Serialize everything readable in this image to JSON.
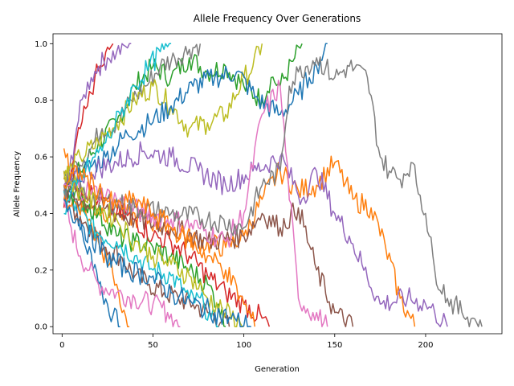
{
  "chart_data": {
    "type": "line",
    "title": "Allele Frequency Over Generations",
    "xlabel": "Generation",
    "ylabel": "Allele Frequency",
    "xlim": [
      -5,
      242
    ],
    "ylim": [
      -0.025,
      1.035
    ],
    "xticks": [
      0,
      50,
      100,
      150,
      200
    ],
    "yticks": [
      0.0,
      0.2,
      0.4,
      0.6,
      0.8,
      1.0
    ],
    "xtick_labels": [
      "0",
      "50",
      "100",
      "150",
      "200"
    ],
    "ytick_labels": [
      "0.0",
      "0.2",
      "0.4",
      "0.6",
      "0.8",
      "1.0"
    ],
    "grid": false,
    "legend": "none",
    "colors": [
      "#1f77b4",
      "#ff7f0e",
      "#2ca02c",
      "#d62728",
      "#9467bd",
      "#8c564b",
      "#e377c2",
      "#7f7f7f",
      "#bcbd22",
      "#17becf"
    ],
    "series": [
      {
        "x": [
          1,
          6,
          12,
          18,
          22,
          28,
          32
        ],
        "y": [
          0.55,
          0.48,
          0.3,
          0.22,
          0.12,
          0.04,
          0.0
        ]
      },
      {
        "x": [
          1,
          5,
          10,
          15,
          20,
          26,
          30,
          33,
          37
        ],
        "y": [
          0.63,
          0.52,
          0.45,
          0.38,
          0.3,
          0.22,
          0.15,
          0.05,
          0.0
        ]
      },
      {
        "x": [
          1,
          10,
          20,
          30,
          40,
          50,
          60,
          70,
          80,
          90,
          100,
          110,
          115,
          120,
          128,
          132
        ],
        "y": [
          0.5,
          0.55,
          0.65,
          0.72,
          0.85,
          0.92,
          0.88,
          0.95,
          0.9,
          0.92,
          0.85,
          0.8,
          0.88,
          0.85,
          0.95,
          1.0
        ]
      },
      {
        "x": [
          1,
          5,
          10,
          14,
          18,
          22,
          26,
          28
        ],
        "y": [
          0.42,
          0.55,
          0.7,
          0.78,
          0.88,
          0.92,
          0.98,
          1.0
        ]
      },
      {
        "x": [
          1,
          4,
          8,
          12,
          16,
          20,
          25,
          30,
          35,
          38
        ],
        "y": [
          0.45,
          0.55,
          0.7,
          0.82,
          0.88,
          0.92,
          0.95,
          0.97,
          0.99,
          1.0
        ]
      },
      {
        "x": [
          1,
          8,
          16,
          24,
          32,
          40,
          48,
          56,
          64,
          72,
          80,
          88,
          92
        ],
        "y": [
          0.48,
          0.4,
          0.35,
          0.28,
          0.25,
          0.18,
          0.15,
          0.12,
          0.1,
          0.08,
          0.05,
          0.02,
          0.0
        ]
      },
      {
        "x": [
          1,
          5,
          10,
          15,
          20,
          30,
          40,
          50,
          58,
          62,
          65
        ],
        "y": [
          0.45,
          0.35,
          0.25,
          0.2,
          0.15,
          0.12,
          0.1,
          0.08,
          0.05,
          0.02,
          0.0
        ]
      },
      {
        "x": [
          1,
          8,
          15,
          22,
          30,
          38,
          46,
          54,
          62,
          70,
          76
        ],
        "y": [
          0.5,
          0.58,
          0.62,
          0.7,
          0.72,
          0.8,
          0.85,
          0.92,
          0.95,
          0.98,
          1.0
        ]
      },
      {
        "x": [
          1,
          10,
          20,
          30,
          40,
          50,
          60,
          70,
          80,
          90,
          100,
          105,
          110
        ],
        "y": [
          0.52,
          0.6,
          0.65,
          0.72,
          0.8,
          0.85,
          0.78,
          0.7,
          0.72,
          0.75,
          0.88,
          0.92,
          1.0
        ]
      },
      {
        "x": [
          1,
          10,
          20,
          30,
          40,
          50,
          60,
          70,
          78,
          82,
          86
        ],
        "y": [
          0.48,
          0.4,
          0.33,
          0.3,
          0.25,
          0.2,
          0.18,
          0.1,
          0.08,
          0.03,
          0.0
        ]
      },
      {
        "x": [
          1,
          12,
          24,
          36,
          48,
          60,
          72,
          84,
          96,
          108,
          120,
          130,
          136,
          140,
          144,
          146
        ],
        "y": [
          0.5,
          0.55,
          0.6,
          0.68,
          0.72,
          0.78,
          0.85,
          0.88,
          0.9,
          0.8,
          0.75,
          0.82,
          0.88,
          0.92,
          0.97,
          1.0
        ]
      },
      {
        "x": [
          1,
          15,
          30,
          45,
          60,
          75,
          90,
          100,
          110,
          120,
          130,
          140,
          150,
          160,
          170,
          178,
          186,
          194
        ],
        "y": [
          0.45,
          0.42,
          0.4,
          0.38,
          0.35,
          0.3,
          0.28,
          0.32,
          0.45,
          0.55,
          0.48,
          0.5,
          0.58,
          0.45,
          0.42,
          0.28,
          0.1,
          0.0
        ]
      },
      {
        "x": [
          1,
          10,
          20,
          30,
          40,
          50,
          60,
          70,
          80,
          86,
          90
        ],
        "y": [
          0.5,
          0.45,
          0.4,
          0.32,
          0.3,
          0.28,
          0.25,
          0.2,
          0.15,
          0.08,
          0.0
        ]
      },
      {
        "x": [
          1,
          10,
          20,
          30,
          40,
          50,
          60,
          70,
          80,
          90,
          100,
          110,
          114
        ],
        "y": [
          0.55,
          0.5,
          0.45,
          0.4,
          0.38,
          0.32,
          0.3,
          0.25,
          0.18,
          0.12,
          0.08,
          0.03,
          0.0
        ]
      },
      {
        "x": [
          1,
          15,
          30,
          45,
          60,
          75,
          90,
          105,
          120,
          132,
          140,
          150,
          158,
          165,
          175,
          190,
          200,
          205,
          212
        ],
        "y": [
          0.5,
          0.55,
          0.58,
          0.62,
          0.6,
          0.55,
          0.5,
          0.55,
          0.6,
          0.45,
          0.55,
          0.4,
          0.32,
          0.22,
          0.08,
          0.1,
          0.08,
          0.05,
          0.0
        ]
      },
      {
        "x": [
          1,
          20,
          40,
          60,
          80,
          100,
          110,
          120,
          130,
          140,
          150,
          160
        ],
        "y": [
          0.48,
          0.42,
          0.38,
          0.35,
          0.3,
          0.32,
          0.4,
          0.35,
          0.42,
          0.2,
          0.05,
          0.0
        ]
      },
      {
        "x": [
          1,
          15,
          30,
          45,
          60,
          75,
          90,
          100,
          110,
          120,
          130,
          138,
          146
        ],
        "y": [
          0.5,
          0.48,
          0.45,
          0.4,
          0.38,
          0.35,
          0.3,
          0.4,
          0.75,
          0.85,
          0.1,
          0.05,
          0.0
        ]
      },
      {
        "x": [
          1,
          20,
          40,
          60,
          80,
          100,
          110,
          120,
          125,
          130,
          140,
          150,
          158,
          168,
          175,
          180,
          186,
          192,
          200,
          205,
          212,
          220,
          226,
          231
        ],
        "y": [
          0.5,
          0.45,
          0.42,
          0.4,
          0.38,
          0.35,
          0.5,
          0.55,
          0.85,
          0.9,
          0.95,
          0.88,
          0.92,
          0.88,
          0.6,
          0.55,
          0.52,
          0.58,
          0.4,
          0.2,
          0.1,
          0.05,
          0.03,
          0.0
        ]
      },
      {
        "x": [
          1,
          10,
          20,
          30,
          40,
          50,
          60,
          70,
          80,
          90,
          100
        ],
        "y": [
          0.55,
          0.48,
          0.42,
          0.38,
          0.3,
          0.25,
          0.22,
          0.18,
          0.1,
          0.05,
          0.0
        ]
      },
      {
        "x": [
          1,
          8,
          16,
          24,
          32,
          40,
          48,
          56,
          60
        ],
        "y": [
          0.4,
          0.5,
          0.58,
          0.65,
          0.75,
          0.85,
          0.92,
          0.98,
          1.0
        ]
      },
      {
        "x": [
          1,
          12,
          24,
          36,
          48,
          60,
          72,
          84,
          96,
          104
        ],
        "y": [
          0.45,
          0.35,
          0.25,
          0.2,
          0.18,
          0.12,
          0.08,
          0.05,
          0.02,
          0.0
        ]
      },
      {
        "x": [
          1,
          10,
          20,
          30,
          40,
          50,
          60,
          70,
          80,
          90,
          100,
          106
        ],
        "y": [
          0.5,
          0.55,
          0.48,
          0.42,
          0.45,
          0.4,
          0.35,
          0.3,
          0.25,
          0.2,
          0.08,
          0.0
        ]
      }
    ]
  }
}
